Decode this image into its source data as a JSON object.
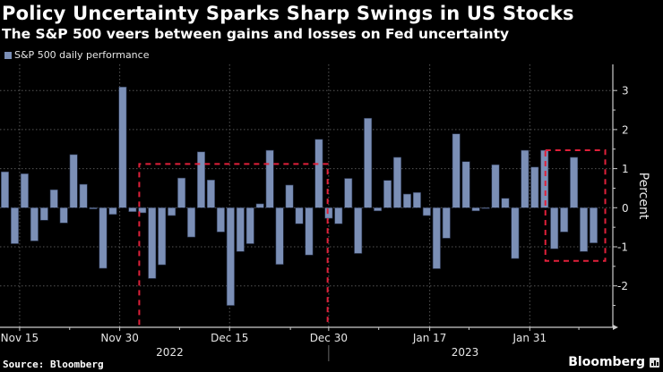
{
  "header": {
    "title": "Policy Uncertainty Sparks Sharp Swings in US Stocks",
    "subtitle": "The S&P 500 veers between gains and losses on Fed uncertainty"
  },
  "footer": {
    "source": "Source: Bloomberg",
    "brand": "Bloomberg"
  },
  "colors": {
    "bar": "#7b8fb6",
    "highlight_box": "#e0203a",
    "grid": "#555555",
    "axis": "#cccccc"
  },
  "chart_data": {
    "type": "bar",
    "title": "Policy Uncertainty Sparks Sharp Swings in US Stocks",
    "subtitle": "The S&P 500 veers between gains and losses on Fed uncertainty",
    "xlabel": "",
    "ylabel": "Percent",
    "ylim": [
      -3,
      3.6
    ],
    "yticks": [
      -2,
      -1,
      0,
      1,
      2,
      3
    ],
    "grid": true,
    "legend": {
      "position": "top-left",
      "entries": [
        "S&P 500 daily performance"
      ]
    },
    "x_tick_labels": [
      {
        "label": "Nov 15",
        "index": 1.5
      },
      {
        "label": "Nov 30",
        "index": 11.7
      },
      {
        "label": "Dec 15",
        "index": 22.9
      },
      {
        "label": "Dec 30",
        "index": 33.0
      },
      {
        "label": "Jan 17",
        "index": 43.3
      },
      {
        "label": "Jan 31",
        "index": 53.5
      }
    ],
    "minor_tick_indices": [
      6.6,
      17.8,
      29.1,
      38.1,
      47.3,
      58.5
    ],
    "year_labels": [
      {
        "label": "2022",
        "index": 16.8
      },
      {
        "label": "2023",
        "index": 46.9
      }
    ],
    "year_divider_index": 33.0,
    "series": [
      {
        "name": "S&P 500 daily performance",
        "values": [
          0.92,
          -0.92,
          0.87,
          -0.85,
          -0.32,
          0.46,
          -0.39,
          1.36,
          0.6,
          -0.03,
          -1.55,
          -0.17,
          3.09,
          -0.1,
          -0.13,
          -1.81,
          -1.46,
          -0.2,
          0.76,
          -0.75,
          1.43,
          0.71,
          -0.62,
          -2.5,
          -1.12,
          -0.92,
          0.1,
          1.47,
          -1.45,
          0.58,
          -0.41,
          -1.21,
          1.75,
          -0.27,
          -0.41,
          0.75,
          -1.17,
          2.29,
          -0.08,
          0.7,
          1.29,
          0.35,
          0.39,
          -0.2,
          -1.56,
          -0.78,
          1.89,
          1.18,
          -0.08,
          -0.02,
          1.1,
          0.24,
          -1.3,
          1.47,
          1.04,
          1.47,
          -1.05,
          -0.62,
          1.29,
          -1.12,
          -0.9
        ]
      }
    ],
    "annotations": [
      {
        "type": "dashed-box",
        "from_index": 13.8,
        "to_index": 33.0,
        "y_top": 1.12,
        "y_bottom": -3.0
      },
      {
        "type": "dashed-box",
        "from_index": 55.2,
        "to_index": 61.3,
        "y_top": 1.47,
        "y_bottom": -1.36
      }
    ]
  }
}
